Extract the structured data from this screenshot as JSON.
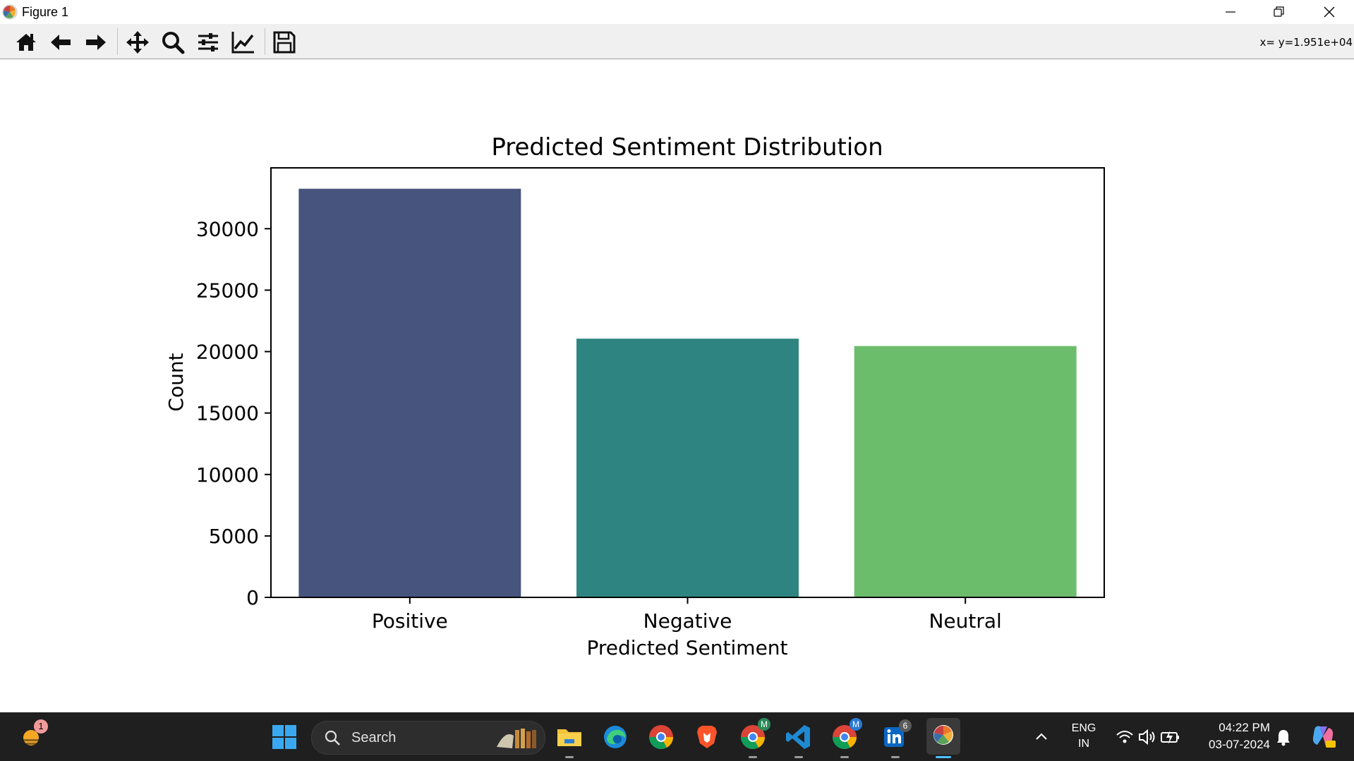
{
  "window": {
    "title": "Figure 1",
    "controls": [
      "minimize",
      "restore",
      "close"
    ]
  },
  "toolbar": {
    "buttons": [
      {
        "icon": "home-icon",
        "name": "home"
      },
      {
        "icon": "back-arrow-icon",
        "name": "back"
      },
      {
        "icon": "forward-arrow-icon",
        "name": "forward"
      },
      {
        "icon": "pan-move-icon",
        "name": "pan"
      },
      {
        "icon": "zoom-magnifier-icon",
        "name": "zoom"
      },
      {
        "icon": "subplots-sliders-icon",
        "name": "configure-subplots"
      },
      {
        "icon": "axes-edit-chart-icon",
        "name": "edit-axes"
      },
      {
        "icon": "save-floppy-icon",
        "name": "save"
      }
    ],
    "coords": "x= y=1.951e+04"
  },
  "chart_data": {
    "type": "bar",
    "title": "Predicted Sentiment Distribution",
    "xlabel": "Predicted Sentiment",
    "ylabel": "Count",
    "categories": [
      "Positive",
      "Negative",
      "Neutral"
    ],
    "values": [
      33250,
      21050,
      20450
    ],
    "colors": [
      "#46547e",
      "#2e8480",
      "#6bbd6b"
    ],
    "ylim": [
      0,
      34950
    ],
    "yticks": [
      0,
      5000,
      10000,
      15000,
      20000,
      25000,
      30000
    ],
    "ytick_labels": [
      "0",
      "5000",
      "10000",
      "15000",
      "20000",
      "25000",
      "30000"
    ],
    "grid": false
  },
  "taskbar": {
    "weather_badge": "1",
    "search_label": "Search",
    "apps": [
      {
        "icon": "file-explorer-icon",
        "running": true
      },
      {
        "icon": "edge-browser-icon",
        "running": false
      },
      {
        "icon": "chrome-browser-icon",
        "running": false
      },
      {
        "icon": "brave-browser-icon",
        "running": false
      },
      {
        "icon": "chrome-profile-m-icon",
        "running": true,
        "badge": "M"
      },
      {
        "icon": "vscode-icon",
        "running": true
      },
      {
        "icon": "chrome-profile-m2-icon",
        "running": true,
        "badge": "M"
      },
      {
        "icon": "linkedin-icon",
        "running": true,
        "badge": "6"
      },
      {
        "icon": "matplotlib-figure-icon",
        "running": true,
        "active": true
      }
    ],
    "language": "ENG",
    "region": "IN",
    "time": "04:22 PM",
    "date": "03-07-2024"
  }
}
